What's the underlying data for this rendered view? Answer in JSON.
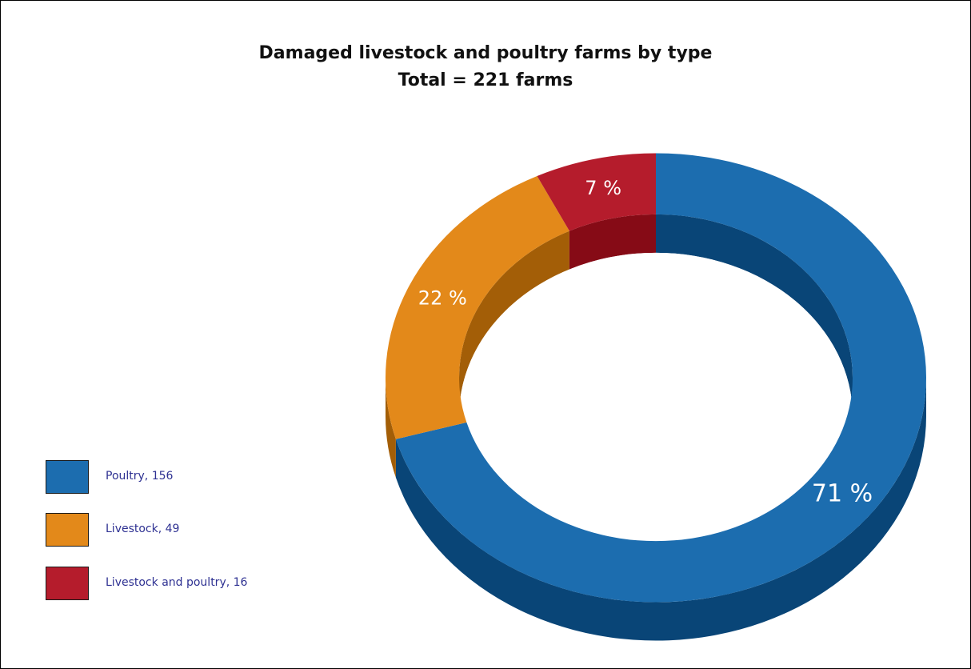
{
  "chart_data": {
    "type": "pie",
    "variant": "donut-3d",
    "title": "Damaged livestock and poultry farms by type",
    "subtitle": "Total = 221 farms",
    "series": [
      {
        "name": "Poultry",
        "value": 156,
        "label": "Poultry, 156",
        "percent_label": "71 %",
        "color": "#1c6daf",
        "side_color": "#094577"
      },
      {
        "name": "Livestock",
        "value": 49,
        "label": "Livestock, 49",
        "percent_label": "22 %",
        "color": "#e3891a",
        "side_color": "#a35e07"
      },
      {
        "name": "Livestock and poultry",
        "value": 16,
        "label": "Livestock and poultry, 16",
        "percent_label": "7 %",
        "color": "#b51c2c",
        "side_color": "#860b16"
      }
    ],
    "legend_position": "left-bottom"
  }
}
